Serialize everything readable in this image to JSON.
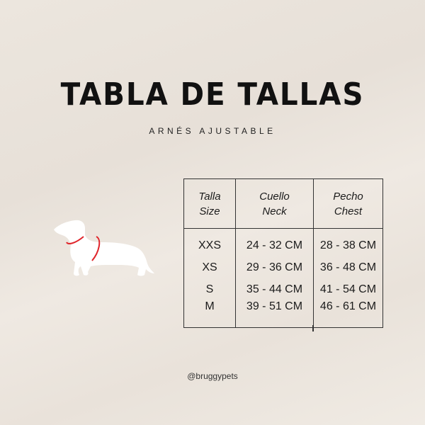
{
  "title": "TABLA DE TALLAS",
  "subtitle": "ARNÉS AJUSTABLE",
  "table": {
    "headers": [
      {
        "es": "Talla",
        "en": "Size"
      },
      {
        "es": "Cuello",
        "en": "Neck"
      },
      {
        "es": "Pecho",
        "en": "Chest"
      }
    ],
    "rows": [
      {
        "size": "XXS",
        "neck": "24 - 32 CM",
        "chest": "28 - 38 CM"
      },
      {
        "size": "XS",
        "neck": "29 - 36 CM",
        "chest": "36 - 48 CM"
      },
      {
        "size": "S",
        "neck": "35 - 44 CM",
        "chest": "41 - 54 CM"
      },
      {
        "size": "M",
        "neck": "39 - 51 CM",
        "chest": "46 - 61 CM"
      }
    ]
  },
  "handle": "@bruggypets",
  "illustration": {
    "icon": "dachshund-silhouette-icon",
    "measure_color": "#e0252b"
  }
}
